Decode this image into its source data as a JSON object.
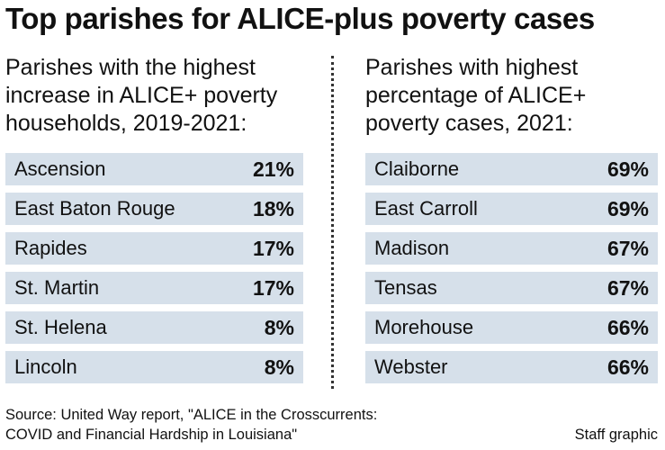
{
  "title": "Top parishes for ALICE-plus poverty cases",
  "left": {
    "subhead": [
      "Parishes with the highest",
      "increase in ALICE+ poverty",
      "households, 2019-2021:"
    ],
    "rows": [
      {
        "name": "Ascension",
        "value": "21%"
      },
      {
        "name": "East Baton Rouge",
        "value": "18%"
      },
      {
        "name": "Rapides",
        "value": "17%"
      },
      {
        "name": "St. Martin",
        "value": "17%"
      },
      {
        "name": "St. Helena",
        "value": "8%"
      },
      {
        "name": "Lincoln",
        "value": "8%"
      }
    ]
  },
  "right": {
    "subhead": [
      "Parishes with highest",
      "percentage of ALICE+",
      "poverty cases, 2021:"
    ],
    "rows": [
      {
        "name": "Claiborne",
        "value": "69%"
      },
      {
        "name": "East Carroll",
        "value": "69%"
      },
      {
        "name": "Madison",
        "value": "67%"
      },
      {
        "name": "Tensas",
        "value": "67%"
      },
      {
        "name": "Morehouse",
        "value": "66%"
      },
      {
        "name": "Webster",
        "value": "66%"
      }
    ]
  },
  "source": [
    "Source: United Way report, \"ALICE in the Crosscurrents:",
    "COVID and Financial Hardship in Louisiana\""
  ],
  "credit": "Staff graphic",
  "colors": {
    "row_background": "#d6e0ea",
    "text": "#111111"
  }
}
